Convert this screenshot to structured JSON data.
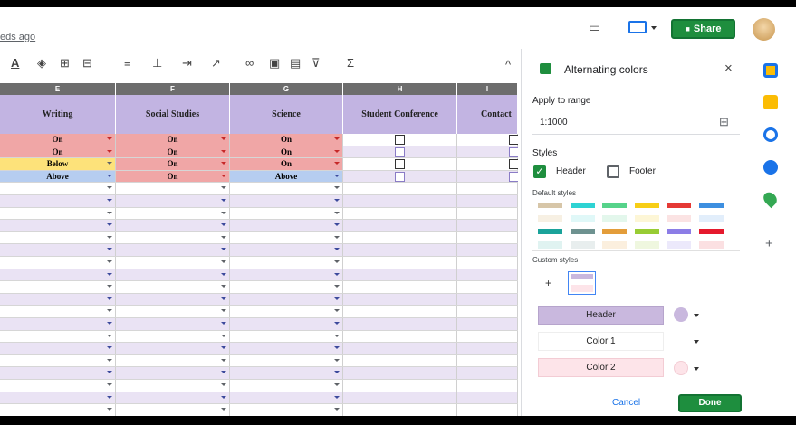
{
  "header": {
    "saved_text": "eds ago",
    "share_label": "Share"
  },
  "toolbar": {
    "sigma": "Σ",
    "collapse": "^"
  },
  "columns": [
    {
      "letter": "E",
      "header": "Writing"
    },
    {
      "letter": "F",
      "header": "Social Studies"
    },
    {
      "letter": "G",
      "header": "Science"
    },
    {
      "letter": "H",
      "header": "Student Conference"
    },
    {
      "letter": "I",
      "header": "Contact"
    }
  ],
  "rows": [
    {
      "e": "On",
      "f": "On",
      "g": "On"
    },
    {
      "e": "On",
      "f": "On",
      "g": "On"
    },
    {
      "e": "Below",
      "f": "On",
      "g": "On"
    },
    {
      "e": "Above",
      "f": "On",
      "g": "Above"
    }
  ],
  "panel": {
    "title": "Alternating colors",
    "apply_label": "Apply to range",
    "range_value": "1:1000",
    "styles_label": "Styles",
    "header_label": "Header",
    "footer_label": "Footer",
    "default_styles_label": "Default styles",
    "custom_styles_label": "Custom styles",
    "add_label": "+",
    "header_pill": "Header",
    "color1_pill": "Color 1",
    "color2_pill": "Color 2",
    "cancel_label": "Cancel",
    "done_label": "Done",
    "header_color": "#c9b8de",
    "color2": "#fde4e9",
    "swatches": [
      {
        "h": "#d7c6a8",
        "c": "#f7f0e3"
      },
      {
        "h": "#2ed3d3",
        "c": "#e0f8f8"
      },
      {
        "h": "#56d38a",
        "c": "#e3f7ec"
      },
      {
        "h": "#f7ce16",
        "c": "#fdf6d6"
      },
      {
        "h": "#e53935",
        "c": "#fbe3e3"
      },
      {
        "h": "#3d8fe0",
        "c": "#e2eefb"
      },
      {
        "h": "#1aa39a",
        "c": "#e0f3f1"
      },
      {
        "h": "#6e9290",
        "c": "#e8eeee"
      },
      {
        "h": "#e39d3a",
        "c": "#fbefde"
      },
      {
        "h": "#98cc34",
        "c": "#eff7df"
      },
      {
        "h": "#8c7de6",
        "c": "#ece9fb"
      },
      {
        "h": "#e5192d",
        "c": "#fbe0e2"
      }
    ]
  },
  "sidebar": {
    "add": "+"
  }
}
